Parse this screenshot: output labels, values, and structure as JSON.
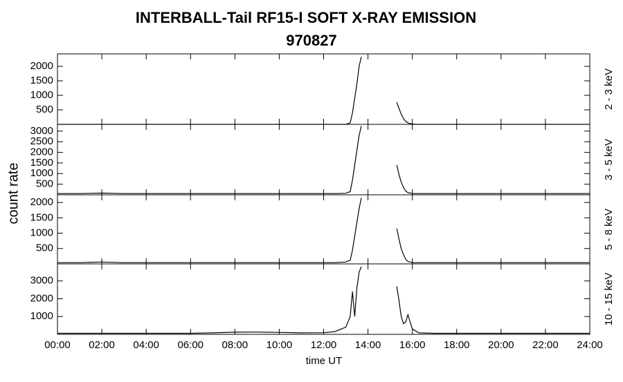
{
  "chart_data": {
    "type": "line",
    "title": "INTERBALL-Tail RF15-I SOFT X-RAY EMISSION",
    "subtitle": "970827",
    "xlabel": "time UT",
    "ylabel": "count rate",
    "color": "#000000",
    "xlim": [
      0,
      24
    ],
    "xticks": [
      {
        "value": 0,
        "label": "00:00"
      },
      {
        "value": 2,
        "label": "02:00"
      },
      {
        "value": 4,
        "label": "04:00"
      },
      {
        "value": 6,
        "label": "06:00"
      },
      {
        "value": 8,
        "label": "08:00"
      },
      {
        "value": 10,
        "label": "10:00"
      },
      {
        "value": 12,
        "label": "12:00"
      },
      {
        "value": 14,
        "label": "14:00"
      },
      {
        "value": 16,
        "label": "16:00"
      },
      {
        "value": 18,
        "label": "18:00"
      },
      {
        "value": 20,
        "label": "20:00"
      },
      {
        "value": 22,
        "label": "22:00"
      },
      {
        "value": 24,
        "label": "24:00"
      }
    ],
    "x": [
      0,
      1,
      2,
      3,
      4,
      5,
      6,
      7,
      8,
      9,
      10,
      11,
      12,
      12.5,
      13.0,
      13.2,
      13.3,
      13.4,
      13.5,
      13.6,
      13.7,
      14.5,
      15.3,
      15.4,
      15.5,
      15.6,
      15.7,
      15.8,
      16.0,
      16.3,
      17,
      18,
      19,
      20,
      21,
      22,
      23,
      24
    ],
    "panels": [
      {
        "name": "2 - 3 keV",
        "ylim": [
          0,
          2430
        ],
        "yticks": [
          500,
          1000,
          1500,
          2000
        ],
        "values": [
          0,
          0,
          0,
          0,
          0,
          0,
          0,
          0,
          0,
          0,
          0,
          0,
          0,
          0,
          0,
          50,
          400,
          900,
          1400,
          2000,
          2330,
          null,
          760,
          550,
          350,
          200,
          100,
          50,
          10,
          0,
          0,
          0,
          0,
          0,
          0,
          0,
          0,
          0
        ]
      },
      {
        "name": "3 - 5 keV",
        "ylim": [
          0,
          3320
        ],
        "yticks": [
          500,
          1000,
          1500,
          2000,
          2500,
          3000
        ],
        "values": [
          60,
          60,
          80,
          60,
          60,
          60,
          60,
          60,
          60,
          60,
          60,
          60,
          60,
          60,
          70,
          150,
          700,
          1400,
          2100,
          2800,
          3250,
          null,
          1400,
          950,
          600,
          350,
          180,
          100,
          60,
          60,
          60,
          60,
          60,
          60,
          60,
          60,
          60,
          60
        ]
      },
      {
        "name": "5 - 8 keV",
        "ylim": [
          0,
          2250
        ],
        "yticks": [
          500,
          1000,
          1500,
          2000
        ],
        "values": [
          40,
          40,
          60,
          40,
          40,
          40,
          40,
          40,
          40,
          40,
          40,
          40,
          40,
          40,
          60,
          120,
          450,
          900,
          1350,
          1800,
          2150,
          null,
          1150,
          800,
          500,
          300,
          150,
          80,
          40,
          40,
          40,
          40,
          40,
          40,
          40,
          40,
          40,
          40
        ]
      },
      {
        "name": "10 - 15 keV",
        "ylim": [
          0,
          3960
        ],
        "yticks": [
          1000,
          2000,
          3000
        ],
        "values": [
          60,
          60,
          60,
          60,
          60,
          60,
          60,
          80,
          120,
          130,
          110,
          80,
          90,
          150,
          400,
          1000,
          2400,
          1000,
          2600,
          3500,
          3800,
          null,
          2700,
          1900,
          1000,
          600,
          700,
          1100,
          300,
          80,
          60,
          60,
          60,
          60,
          60,
          60,
          60,
          60
        ]
      }
    ]
  }
}
